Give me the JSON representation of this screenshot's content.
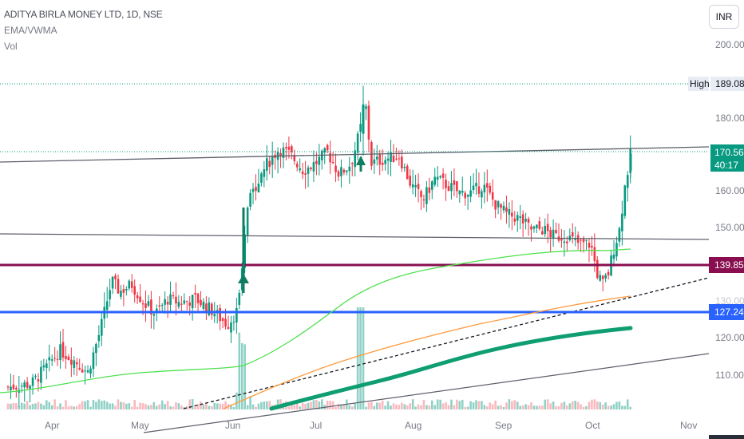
{
  "header": {
    "symbol_title": "ADITYA BIRLA MONEY LTD, 1D, NSE",
    "indicator_1": "EMA/VWMA",
    "indicator_2": "Vol"
  },
  "currency_button": "INR",
  "price_scale": {
    "ticks": [
      "200.00",
      "180.00",
      "160.00",
      "150.00",
      "120.00",
      "110.00"
    ],
    "faded_tick": "130.00"
  },
  "price_labels": {
    "high_tag": "High",
    "high_value": "189.08",
    "last_price": "170.56",
    "countdown": "40:17",
    "level_1": "139.85",
    "level_2": "127.24"
  },
  "colors": {
    "up": "#089981",
    "down": "#f23645",
    "ema_green": "#4ee04e",
    "ema_orange": "#ff9a3c",
    "vwma_teal": "#0f9d72",
    "level_1": "#880e4f",
    "level_2": "#2962ff"
  },
  "chart_data": {
    "type": "candlestick",
    "title": "ADITYA BIRLA MONEY LTD, 1D, NSE",
    "x_tick_labels": [
      "Apr",
      "May",
      "Jun",
      "Jul",
      "Aug",
      "Sep",
      "Oct",
      "Nov"
    ],
    "y_axis_range": [
      102,
      212
    ],
    "candles_approx": [
      {
        "date": "Mar",
        "o": 106,
        "h": 110,
        "l": 104,
        "c": 107
      },
      {
        "date": "Apr",
        "o": 112,
        "h": 118,
        "l": 106,
        "c": 115
      },
      {
        "date": "Apr-mid",
        "o": 112,
        "h": 116,
        "l": 109,
        "c": 113
      },
      {
        "date": "Apr-end",
        "o": 118,
        "h": 126,
        "l": 116,
        "c": 124
      },
      {
        "date": "Apr-30",
        "o": 131,
        "h": 140,
        "l": 129,
        "c": 137
      },
      {
        "date": "May",
        "o": 138,
        "h": 140,
        "l": 130,
        "c": 132
      },
      {
        "date": "May-mid",
        "o": 130,
        "h": 136,
        "l": 122,
        "c": 126
      },
      {
        "date": "May-end",
        "o": 130,
        "h": 134,
        "l": 124,
        "c": 128
      },
      {
        "date": "Jun",
        "o": 124,
        "h": 130,
        "l": 116,
        "c": 122
      },
      {
        "date": "Jun-breakout",
        "o": 130,
        "h": 139,
        "l": 128,
        "c": 138
      },
      {
        "date": "Jun-gap",
        "o": 139,
        "h": 156,
        "l": 138,
        "c": 155
      },
      {
        "date": "Jun-end",
        "o": 162,
        "h": 175,
        "l": 158,
        "c": 168
      },
      {
        "date": "Jul",
        "o": 170,
        "h": 184,
        "l": 164,
        "c": 172
      },
      {
        "date": "Jul-mid",
        "o": 168,
        "h": 180,
        "l": 160,
        "c": 166
      },
      {
        "date": "Jul-high",
        "o": 175,
        "h": 189.08,
        "l": 168,
        "c": 184
      },
      {
        "date": "Aug",
        "o": 168,
        "h": 172,
        "l": 152,
        "c": 156
      },
      {
        "date": "Aug-mid",
        "o": 160,
        "h": 166,
        "l": 150,
        "c": 162
      },
      {
        "date": "Sep",
        "o": 160,
        "h": 164,
        "l": 152,
        "c": 158
      },
      {
        "date": "Sep-mid",
        "o": 155,
        "h": 158,
        "l": 148,
        "c": 150
      },
      {
        "date": "Sep-end",
        "o": 150,
        "h": 156,
        "l": 145,
        "c": 148
      },
      {
        "date": "Oct",
        "o": 148,
        "h": 150,
        "l": 131,
        "c": 134
      },
      {
        "date": "Oct-low",
        "o": 134,
        "h": 141,
        "l": 130,
        "c": 139
      },
      {
        "date": "Oct-up",
        "o": 140,
        "h": 156,
        "l": 139,
        "c": 154
      },
      {
        "date": "Oct-last",
        "o": 160,
        "h": 171,
        "l": 158,
        "c": 170.56
      }
    ],
    "horizontal_levels": [
      {
        "label": "High",
        "value": 189.08
      },
      {
        "value": 139.85
      },
      {
        "value": 127.24
      }
    ],
    "last_price": 170.56
  }
}
